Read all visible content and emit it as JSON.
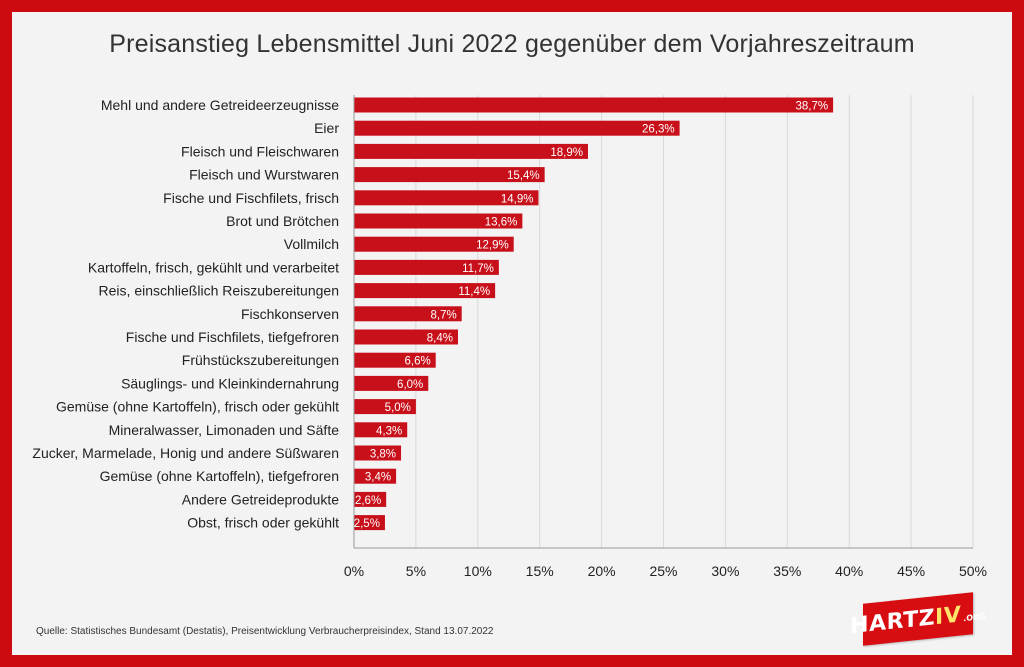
{
  "title": "Preisanstieg Lebensmittel Juni 2022 gegenüber dem Vorjahreszeitraum",
  "source": "Quelle: Statistisches Bundesamt (Destatis), Preisentwicklung Verbraucherpreisindex, Stand 13.07.2022",
  "logo": {
    "main": "HARTZ",
    "accent": "IV",
    "suffix": ".ORG"
  },
  "colors": {
    "bar": "#c8101a",
    "frame": "#cc0a0f",
    "background": "#f3f3f3",
    "grid": "#d9d9d9"
  },
  "chart_data": {
    "type": "bar",
    "orientation": "horizontal",
    "categories": [
      "Mehl und andere Getreideerzeugnisse",
      "Eier",
      "Fleisch und Fleischwaren",
      "Fleisch und Wurstwaren",
      "Fische und Fischfilets, frisch",
      "Brot und Brötchen",
      "Vollmilch",
      "Kartoffeln, frisch, gekühlt und verarbeitet",
      "Reis, einschließlich Reiszubereitungen",
      "Fischkonserven",
      "Fische und Fischfilets, tiefgefroren",
      "Frühstückszubereitungen",
      "Säuglings- und Kleinkindernahrung",
      "Gemüse (ohne Kartoffeln), frisch oder gekühlt",
      "Mineralwasser, Limonaden und Säfte",
      "Zucker, Marmelade, Honig und andere Süßwaren",
      "Gemüse (ohne Kartoffeln), tiefgefroren",
      "Andere Getreideprodukte",
      "Obst, frisch oder gekühlt"
    ],
    "values": [
      38.7,
      26.3,
      18.9,
      15.4,
      14.9,
      13.6,
      12.9,
      11.7,
      11.4,
      8.7,
      8.4,
      6.6,
      6.0,
      5.0,
      4.3,
      3.8,
      3.4,
      2.6,
      2.5
    ],
    "value_labels": [
      "38,7%",
      "26,3%",
      "18,9%",
      "15,4%",
      "14,9%",
      "13,6%",
      "12,9%",
      "11,7%",
      "11,4%",
      "8,7%",
      "8,4%",
      "6,6%",
      "6,0%",
      "5,0%",
      "4,3%",
      "3,8%",
      "3,4%",
      "2,6%",
      "2,5%"
    ],
    "xlim": [
      0,
      50
    ],
    "xticks": [
      0,
      5,
      10,
      15,
      20,
      25,
      30,
      35,
      40,
      45,
      50
    ],
    "xtick_labels": [
      "0%",
      "5%",
      "10%",
      "15%",
      "20%",
      "25%",
      "30%",
      "35%",
      "40%",
      "45%",
      "50%"
    ],
    "grid": "vertical",
    "legend": "none"
  }
}
